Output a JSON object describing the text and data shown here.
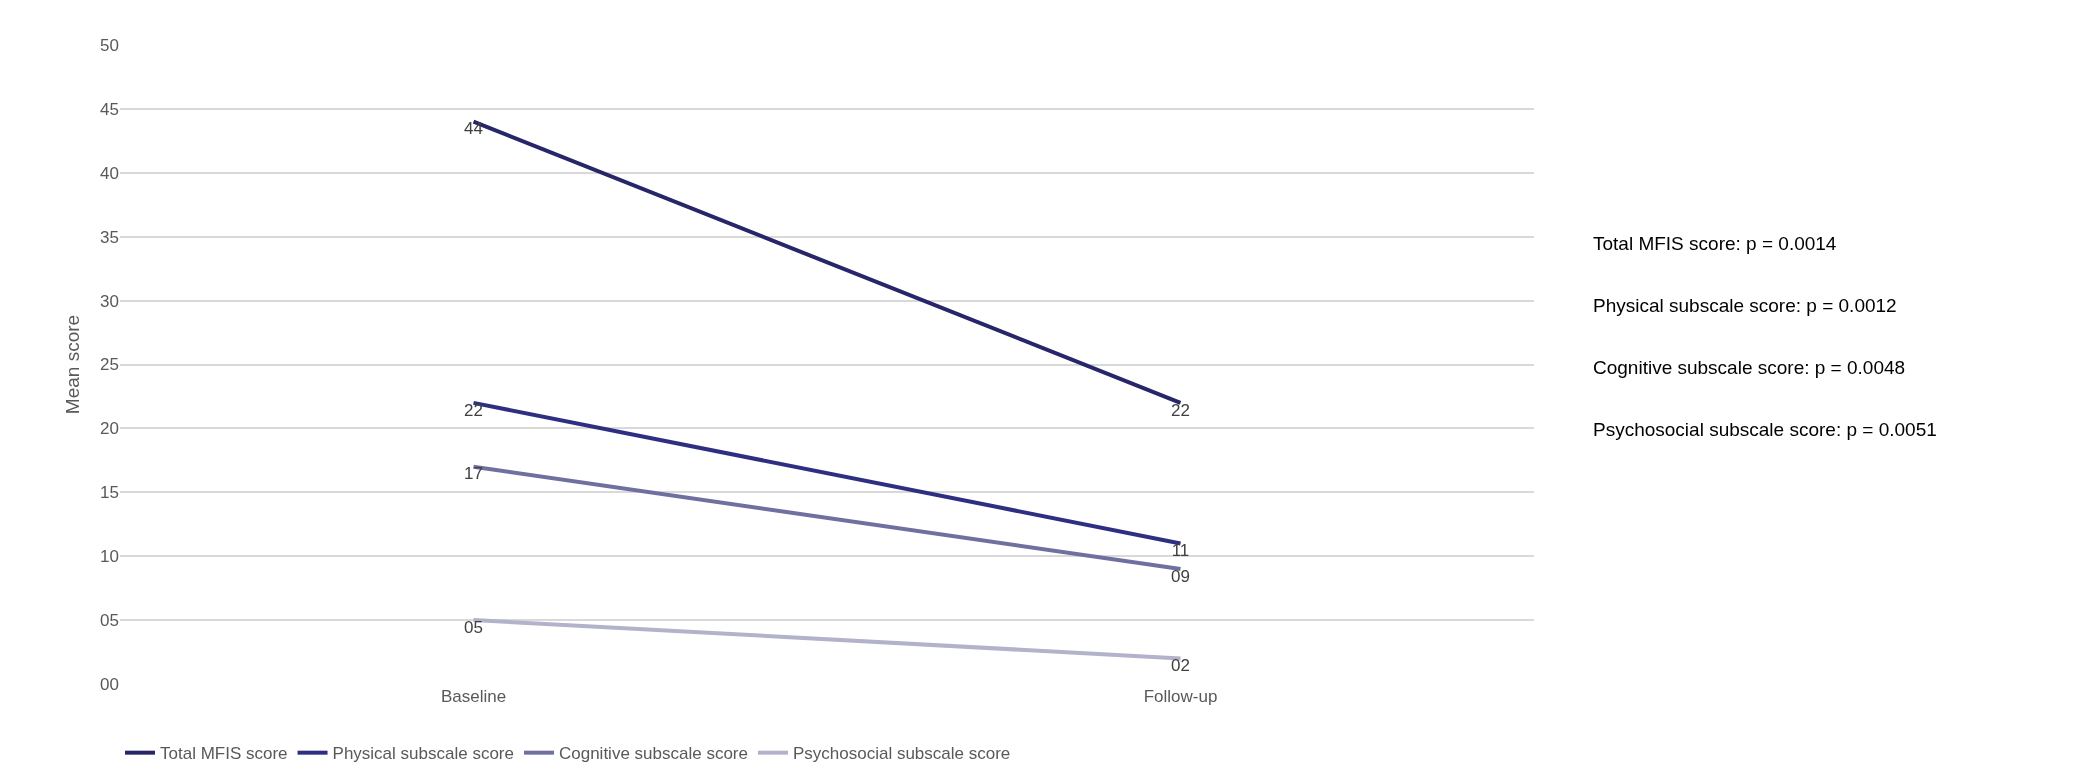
{
  "chart_data": {
    "type": "line",
    "ylabel": "Mean score",
    "categories": [
      "Baseline",
      "Follow-up"
    ],
    "series": [
      {
        "name": "Total MFIS score",
        "color": "#262668",
        "values": [
          44,
          22
        ],
        "value_labels": [
          "44",
          "22"
        ]
      },
      {
        "name": "Physical subscale score",
        "color": "#2e2e82",
        "values": [
          22,
          11
        ],
        "value_labels": [
          "22",
          "11"
        ]
      },
      {
        "name": "Cognitive subscale score",
        "color": "#6f6fa0",
        "values": [
          17,
          9
        ],
        "value_labels": [
          "17",
          "09"
        ]
      },
      {
        "name": "Psychosocial subscale score",
        "color": "#b2b2ca",
        "values": [
          5,
          2
        ],
        "value_labels": [
          "05",
          "02"
        ]
      }
    ],
    "ylim": [
      0,
      50
    ],
    "yticks": [
      {
        "value": 0,
        "label": "00"
      },
      {
        "value": 5,
        "label": "05"
      },
      10,
      15,
      20,
      25,
      30,
      35,
      40,
      45,
      50
    ],
    "grid": "y",
    "legend": "bottom",
    "marker": "none",
    "line_style": "solid",
    "annotations": [
      "Total MFIS score: p = 0.0014",
      "Physical subscale score: p = 0.0012",
      "Cognitive subscale score: p = 0.0048",
      "Psychosocial subscale score: p = 0.0051"
    ]
  }
}
